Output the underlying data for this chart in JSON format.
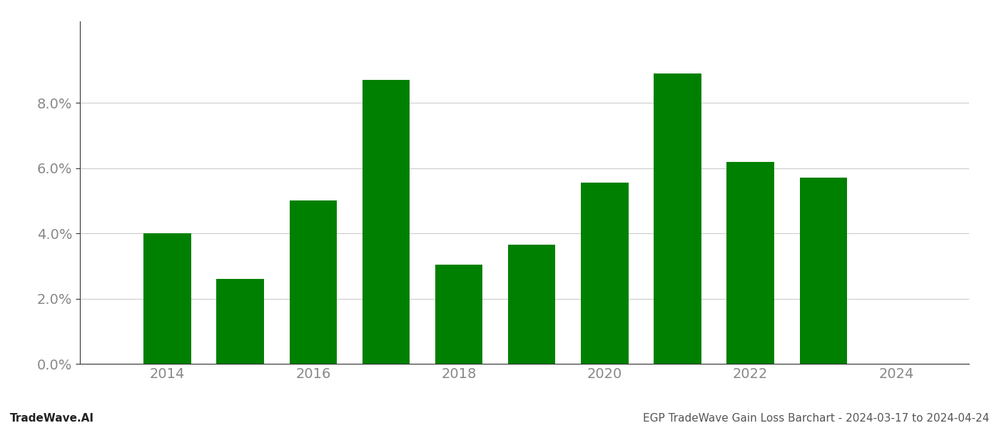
{
  "years": [
    2014,
    2015,
    2016,
    2017,
    2018,
    2019,
    2020,
    2021,
    2022,
    2023
  ],
  "values": [
    0.04,
    0.026,
    0.05,
    0.087,
    0.0305,
    0.0365,
    0.0555,
    0.089,
    0.062,
    0.057
  ],
  "bar_color": "#008000",
  "background_color": "#ffffff",
  "grid_color": "#cccccc",
  "footer_left": "TradeWave.AI",
  "footer_right": "EGP TradeWave Gain Loss Barchart - 2024-03-17 to 2024-04-24",
  "ylim": [
    0,
    0.105
  ],
  "yticks": [
    0.0,
    0.02,
    0.04,
    0.06,
    0.08
  ],
  "xticks": [
    2014,
    2016,
    2018,
    2020,
    2022,
    2024
  ],
  "xlim_left": 2012.8,
  "xlim_right": 2025.0,
  "bar_width": 0.65,
  "footer_fontsize": 11,
  "tick_fontsize": 14,
  "tick_color": "#888888",
  "spine_color": "#333333"
}
